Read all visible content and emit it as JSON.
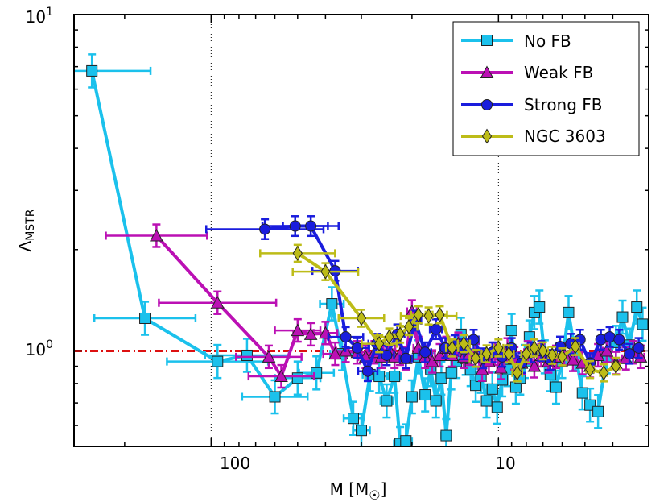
{
  "chart_data": {
    "type": "line",
    "xscale": "log",
    "yscale": "log",
    "x_reversed": true,
    "xlim": [
      300,
      3
    ],
    "ylim": [
      0.52,
      10
    ],
    "xlabel": "M [M",
    "xlabel_symbol": "☉",
    "xlabel_close": "]",
    "ylabel": "Λ",
    "ylabel_sub": "MSTR",
    "x_ticks": [
      {
        "value": 100,
        "label": "100"
      },
      {
        "value": 10,
        "label": "10"
      }
    ],
    "y_ticks": [
      {
        "value": 1,
        "base": "10",
        "exp": "0"
      },
      {
        "value": 10,
        "base": "10",
        "exp": "1"
      }
    ],
    "x_gridlines": [
      100,
      10
    ],
    "reference_line": {
      "y": 1.0,
      "color": "#dd1111",
      "style": "dash-dot"
    },
    "legend_position": "top-right",
    "series": [
      {
        "name": "No FB",
        "color": "#1bc1ec",
        "marker": "square",
        "x": [
          260,
          170,
          95,
          75,
          60,
          50,
          43,
          38,
          35,
          32,
          30,
          28,
          26,
          24.5,
          23,
          22,
          21,
          20,
          19,
          18,
          17.2,
          16.5,
          15.8,
          15.2,
          14.6,
          14,
          13.5,
          13,
          12.5,
          12,
          11.5,
          11,
          10.5,
          10.1,
          9.7,
          9.3,
          9,
          8.7,
          8.4,
          8.1,
          7.8,
          7.5,
          7.2,
          6.9,
          6.6,
          6.3,
          6,
          5.7,
          5.4,
          5.1,
          4.8,
          4.5,
          4.2,
          3.9,
          3.7,
          3.5,
          3.3,
          3.15
        ],
        "y": [
          6.8,
          1.25,
          0.93,
          0.97,
          0.73,
          0.83,
          0.86,
          1.38,
          0.98,
          0.63,
          0.58,
          0.85,
          0.84,
          0.71,
          0.84,
          0.53,
          0.54,
          0.73,
          0.96,
          0.74,
          0.88,
          0.71,
          0.83,
          0.56,
          0.86,
          0.93,
          1.12,
          0.95,
          0.88,
          0.79,
          0.84,
          0.71,
          0.77,
          0.68,
          0.82,
          0.88,
          1.15,
          0.78,
          0.83,
          0.93,
          1.1,
          1.3,
          1.35,
          0.96,
          0.85,
          0.78,
          0.93,
          1.3,
          0.98,
          0.75,
          0.69,
          0.66,
          0.96,
          1.06,
          1.26,
          1.04,
          1.35,
          1.2
        ],
        "xerr_factor": [
          1.6,
          1.5,
          1.5,
          1.4,
          1.3,
          1.2,
          1.15,
          1.1,
          1.1,
          1.08,
          1.07,
          1.06,
          1.06,
          1.05,
          1.05,
          1.05,
          1.05,
          1.04,
          1.04,
          1.04,
          1.04,
          1.04,
          1.04,
          1.04,
          1.03,
          1.03,
          1.03,
          1.03,
          1.03,
          1.03,
          1.03,
          1.03,
          1.03,
          1.03,
          1.03,
          1.03,
          1.03,
          1.03,
          1.03,
          1.03,
          1.03,
          1.03,
          1.03,
          1.03,
          1.03,
          1.03,
          1.03,
          1.03,
          1.03,
          1.03,
          1.03,
          1.03,
          1.03,
          1.03,
          1.03,
          1.03,
          1.03,
          1.03
        ],
        "yerr_factor": 1.12
      },
      {
        "name": "Weak FB",
        "color": "#bb10b4",
        "marker": "triangle",
        "x": [
          155,
          95,
          63,
          57,
          50,
          45,
          40,
          37,
          34,
          31,
          29,
          27,
          25.5,
          24,
          23,
          22,
          21,
          20,
          19,
          18,
          17,
          16,
          15.2,
          14.5,
          13.8,
          13.2,
          12.6,
          12,
          11.4,
          10.8,
          10.3,
          9.8,
          9.3,
          8.8,
          8.3,
          7.9,
          7.5,
          7.1,
          6.7,
          6.3,
          5.9,
          5.5,
          5.1,
          4.8,
          4.5,
          4.2,
          3.9,
          3.6,
          3.4,
          3.2
        ],
        "y": [
          2.2,
          1.39,
          0.96,
          0.84,
          1.15,
          1.12,
          1.13,
          0.98,
          1.0,
          0.99,
          0.96,
          0.99,
          0.96,
          1.01,
          0.96,
          0.98,
          0.95,
          1.31,
          1.02,
          0.96,
          0.93,
          0.97,
          1.02,
          0.97,
          1.05,
          0.96,
          0.98,
          0.97,
          0.88,
          0.93,
          0.98,
          0.89,
          1.01,
          0.95,
          0.92,
          0.99,
          0.9,
          0.97,
          0.93,
          0.96,
          0.98,
          0.94,
          0.92,
          0.9,
          0.97,
          1.0,
          0.92,
          0.95,
          0.99,
          0.96
        ],
        "xerr_factor": [
          1.5,
          1.6,
          1.3,
          1.3,
          1.2,
          1.15,
          1.1,
          1.1,
          1.08,
          1.07,
          1.06,
          1.06,
          1.05,
          1.05,
          1.05,
          1.05,
          1.04,
          1.04,
          1.04,
          1.04,
          1.04,
          1.04,
          1.04,
          1.04,
          1.03,
          1.03,
          1.03,
          1.03,
          1.03,
          1.03,
          1.03,
          1.03,
          1.03,
          1.03,
          1.03,
          1.03,
          1.03,
          1.03,
          1.03,
          1.03,
          1.03,
          1.03,
          1.03,
          1.03,
          1.03,
          1.03,
          1.03,
          1.03,
          1.03,
          1.03
        ],
        "yerr_factor": 1.08
      },
      {
        "name": "Strong FB",
        "color": "#1a1ddd",
        "marker": "circle",
        "x": [
          65,
          51,
          45,
          37,
          34,
          31,
          28.5,
          26.5,
          24.5,
          22.5,
          21,
          19.5,
          18,
          16.5,
          15.3,
          14.2,
          13.2,
          12.2,
          11.3,
          10.5,
          9.7,
          9,
          8.3,
          7.7,
          7.1,
          6.6,
          6.1,
          5.6,
          5.2,
          4.8,
          4.4,
          4.1,
          3.8,
          3.5,
          3.25
        ],
        "y": [
          2.3,
          2.35,
          2.35,
          1.73,
          1.1,
          1.02,
          0.87,
          1.05,
          0.97,
          1.12,
          0.95,
          1.23,
          0.99,
          1.16,
          1.02,
          1.04,
          1.01,
          1.08,
          0.95,
          0.99,
          0.96,
          1.02,
          0.92,
          0.99,
          1.0,
          0.94,
          1.03,
          1.05,
          1.08,
          0.92,
          1.08,
          1.1,
          1.08,
          0.98,
          1.02
        ],
        "xerr_factor": [
          1.6,
          1.3,
          1.25,
          1.2,
          1.15,
          1.1,
          1.08,
          1.07,
          1.06,
          1.06,
          1.05,
          1.05,
          1.05,
          1.05,
          1.04,
          1.04,
          1.04,
          1.04,
          1.04,
          1.04,
          1.03,
          1.03,
          1.03,
          1.03,
          1.03,
          1.03,
          1.03,
          1.03,
          1.03,
          1.03,
          1.03,
          1.03,
          1.03,
          1.03,
          1.03
        ],
        "yerr_factor": 1.07
      },
      {
        "name": "NGC 3603",
        "color": "#bdbc18",
        "marker": "diamond",
        "x": [
          50,
          40,
          30,
          26,
          24,
          22,
          20.5,
          19,
          17.5,
          16,
          14.5,
          13.2,
          12,
          11,
          10,
          9.2,
          8.6,
          8,
          7.5,
          7,
          6.5,
          6,
          5.4,
          4.8,
          4.3,
          3.9
        ],
        "y": [
          1.95,
          1.72,
          1.25,
          1.05,
          1.1,
          1.12,
          1.18,
          1.28,
          1.27,
          1.28,
          1.02,
          1.05,
          0.95,
          0.98,
          1.02,
          0.98,
          0.86,
          0.98,
          1.02,
          1.0,
          0.97,
          0.96,
          1.03,
          0.88,
          0.86,
          0.9
        ],
        "xerr_factor": [
          1.35,
          1.3,
          1.2,
          1.15,
          1.1,
          1.08,
          1.07,
          1.06,
          1.25,
          1.06,
          1.05,
          1.05,
          1.05,
          1.04,
          1.04,
          1.04,
          1.04,
          1.04,
          1.04,
          1.04,
          1.03,
          1.03,
          1.03,
          1.03,
          1.03,
          1.03
        ],
        "yerr_factor": 1.06
      }
    ]
  }
}
